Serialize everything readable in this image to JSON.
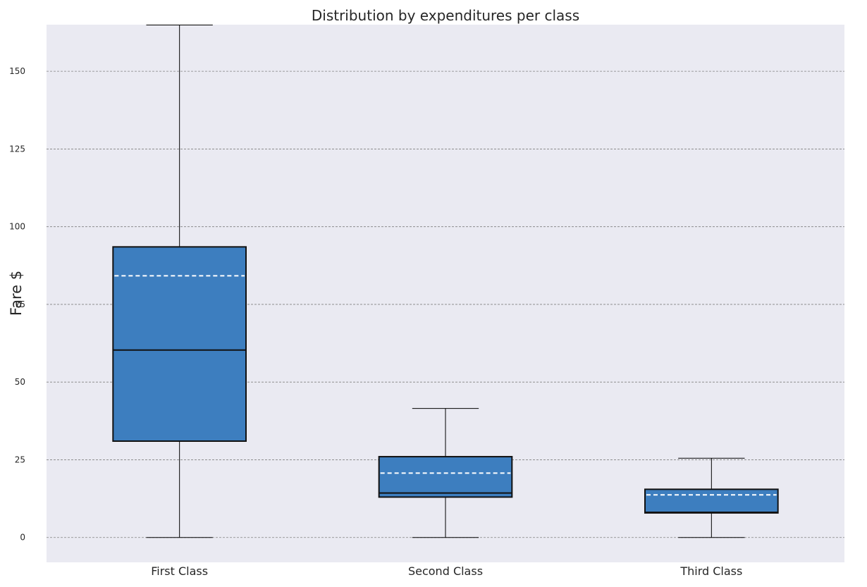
{
  "chart_data": {
    "type": "box",
    "title": "Distribution by expenditures per class",
    "ylabel": "Fare $",
    "xlabel": "",
    "ylim": [
      -8,
      165
    ],
    "yticks": [
      0,
      25,
      50,
      75,
      100,
      125,
      150
    ],
    "grid": "y",
    "categories": [
      "First Class",
      "Second Class",
      "Third Class"
    ],
    "boxes": [
      {
        "category": "First Class",
        "whisker_low": 0,
        "q1": 31,
        "median": 60.3,
        "mean": 84.2,
        "q3": 93.5,
        "whisker_high": 164.9
      },
      {
        "category": "Second Class",
        "whisker_low": 0,
        "q1": 13,
        "median": 14.3,
        "mean": 20.7,
        "q3": 26,
        "whisker_high": 41.5
      },
      {
        "category": "Third Class",
        "whisker_low": 0,
        "q1": 7.9,
        "median": 8.1,
        "mean": 13.7,
        "q3": 15.5,
        "whisker_high": 25.5
      }
    ],
    "colors": {
      "box_fill": "#3d7ebf",
      "plot_bg": "#eaeaf2",
      "mean_line": "#ffffff",
      "median_line": "#111111"
    }
  }
}
